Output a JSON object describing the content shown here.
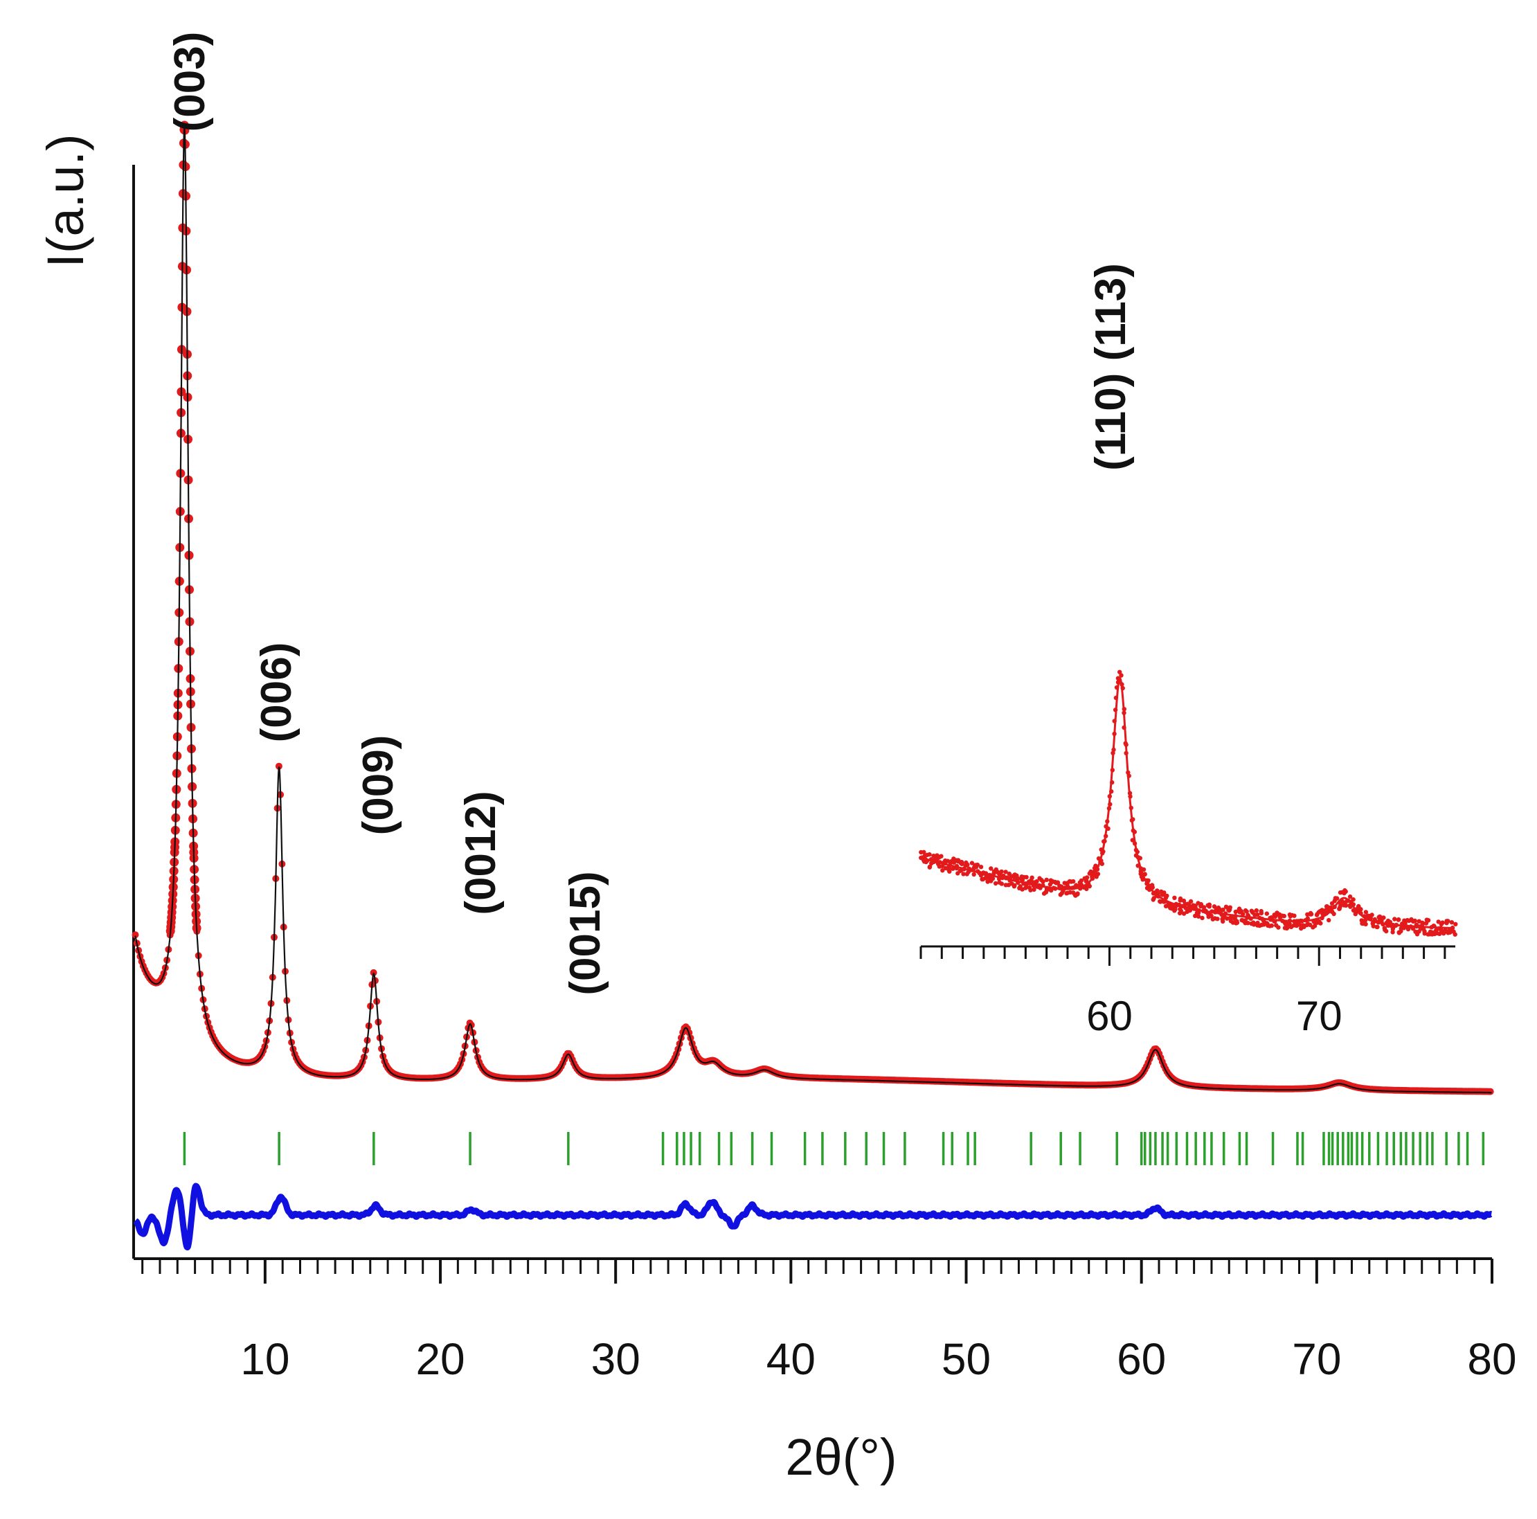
{
  "chart_data": [
    {
      "type": "line",
      "title": "",
      "xlabel": "2θ(°)",
      "ylabel": "I(a.u.)",
      "xlim": [
        2.5,
        80
      ],
      "x_tick_labels": [
        "10",
        "20",
        "30",
        "40",
        "50",
        "60",
        "70",
        "80"
      ],
      "x_ticks": [
        10,
        20,
        30,
        40,
        50,
        60,
        70,
        80
      ],
      "grid": false,
      "legend": "none",
      "colors": {
        "observed": "#e31a1c",
        "calculated": "#111111",
        "difference": "#1010e0",
        "bragg": "#2ca02c"
      },
      "peaks": [
        {
          "x": 5.4,
          "height": 1.0,
          "width": 0.28,
          "label": "(003)"
        },
        {
          "x": 10.8,
          "height": 0.336,
          "width": 0.25,
          "label": "(006)"
        },
        {
          "x": 16.2,
          "height": 0.116,
          "width": 0.28,
          "label": "(009)"
        },
        {
          "x": 21.7,
          "height": 0.062,
          "width": 0.35,
          "label": "(0012)"
        },
        {
          "x": 27.3,
          "height": 0.028,
          "width": 0.4,
          "label": "(0015)"
        },
        {
          "x": 34.0,
          "height": 0.054,
          "width": 0.5,
          "label": ""
        },
        {
          "x": 35.6,
          "height": 0.014,
          "width": 0.6,
          "label": ""
        },
        {
          "x": 38.5,
          "height": 0.009,
          "width": 0.7,
          "label": ""
        },
        {
          "x": 60.8,
          "height": 0.042,
          "width": 0.55,
          "label": "(110) (113)"
        },
        {
          "x": 71.3,
          "height": 0.008,
          "width": 0.8,
          "label": ""
        }
      ],
      "bragg_positions": [
        5.4,
        10.8,
        16.2,
        21.7,
        27.3,
        32.7,
        33.5,
        33.9,
        34.3,
        34.8,
        35.9,
        36.6,
        37.8,
        38.9,
        40.8,
        41.8,
        43.1,
        44.3,
        45.3,
        46.5,
        48.7,
        49.2,
        50.1,
        50.5,
        53.7,
        55.4,
        56.5,
        58.6,
        60.0,
        60.2,
        60.5,
        60.8,
        61.2,
        61.5,
        62.0,
        62.6,
        63.1,
        63.6,
        64.0,
        64.7,
        65.6,
        66.0,
        67.5,
        68.9,
        69.2,
        70.4,
        70.7,
        70.9,
        71.2,
        71.5,
        71.8,
        72.0,
        72.3,
        72.6,
        73.0,
        73.5,
        74.0,
        74.4,
        74.8,
        75.1,
        75.5,
        75.9,
        76.3,
        76.6,
        77.4,
        78.1,
        78.6,
        79.5
      ],
      "difference_features": [
        {
          "x": 3.0,
          "amp": -0.02
        },
        {
          "x": 4.2,
          "amp": -0.03
        },
        {
          "x": 5.0,
          "amp": 0.03
        },
        {
          "x": 5.6,
          "amp": -0.045
        },
        {
          "x": 6.0,
          "amp": 0.04
        },
        {
          "x": 10.9,
          "amp": 0.02
        },
        {
          "x": 16.3,
          "amp": 0.01
        },
        {
          "x": 21.8,
          "amp": 0.006
        },
        {
          "x": 34.0,
          "amp": 0.012
        },
        {
          "x": 35.5,
          "amp": 0.015
        },
        {
          "x": 36.7,
          "amp": -0.012
        },
        {
          "x": 37.8,
          "amp": 0.01
        },
        {
          "x": 60.8,
          "amp": 0.008
        }
      ]
    },
    {
      "type": "line",
      "title": "",
      "inset": true,
      "xlim": [
        51,
        76.5
      ],
      "x_tick_labels": [
        "60",
        "70"
      ],
      "x_ticks": [
        60,
        70
      ],
      "peaks": [
        {
          "x": 60.5,
          "height": 1.0,
          "width": 0.45,
          "label": ""
        },
        {
          "x": 71.2,
          "height": 0.12,
          "width": 0.65,
          "label": ""
        }
      ],
      "baseline": [
        {
          "x": 51,
          "y": 0.29
        },
        {
          "x": 59,
          "y": 0.1
        },
        {
          "x": 69,
          "y": 0.0
        },
        {
          "x": 76.5,
          "y": -0.02
        }
      ]
    }
  ]
}
